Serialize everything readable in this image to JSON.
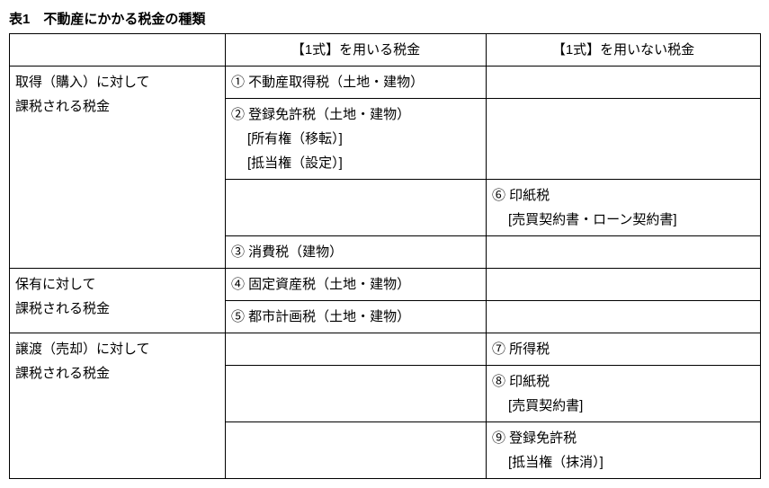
{
  "title": "表1　不動産にかかる税金の種類",
  "headers": {
    "col1": "",
    "col2": "【1式】を用いる税金",
    "col3": "【1式】を用いない税金"
  },
  "rows": {
    "r1": {
      "head_line1": "取得（購入）に対して",
      "head_line2": "課税される税金",
      "c2a": "① 不動産取得税（土地・建物）",
      "c2b_line1": "② 登録免許税（土地・建物）",
      "c2b_line2": "[所有権（移転）]",
      "c2b_line3": "[抵当権（設定）]",
      "c3c_line1": "⑥ 印紙税",
      "c3c_line2": "[売買契約書・ローン契約書]",
      "c2d": "③ 消費税（建物）"
    },
    "r2": {
      "head_line1": "保有に対して",
      "head_line2": "課税される税金",
      "c2a": "④ 固定資産税（土地・建物）",
      "c2b": "⑤ 都市計画税（土地・建物）"
    },
    "r3": {
      "head_line1": "譲渡（売却）に対して",
      "head_line2": "課税される税金",
      "c3a": "⑦ 所得税",
      "c3b_line1": "⑧ 印紙税",
      "c3b_line2": "[売買契約書]",
      "c3c_line1": "⑨ 登録免許税",
      "c3c_line2": "[抵当権（抹消）]"
    }
  }
}
